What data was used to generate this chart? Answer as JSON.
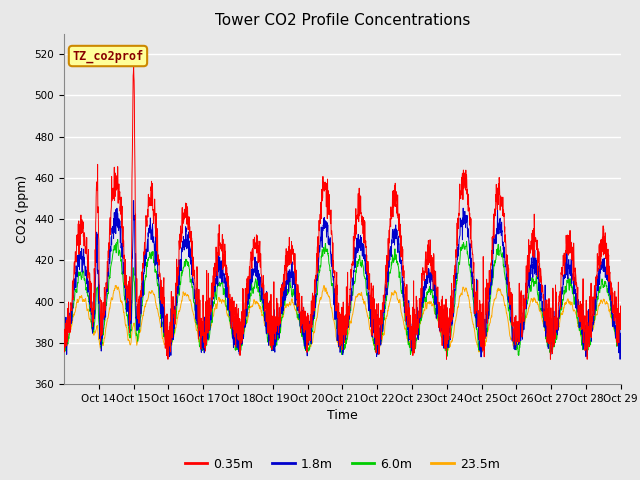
{
  "title": "Tower CO2 Profile Concentrations",
  "xlabel": "Time",
  "ylabel": "CO2 (ppm)",
  "ylim": [
    360,
    530
  ],
  "yticks": [
    360,
    380,
    400,
    420,
    440,
    460,
    480,
    500,
    520
  ],
  "series_labels": [
    "0.35m",
    "1.8m",
    "6.0m",
    "23.5m"
  ],
  "series_colors": [
    "#ff0000",
    "#0000cc",
    "#00cc00",
    "#ffaa00"
  ],
  "legend_label": "TZ_co2prof",
  "legend_box_color": "#ffff99",
  "legend_box_edge": "#cc8800",
  "background_color": "#e8e8e8",
  "grid_color": "#ffffff",
  "n_days": 16,
  "xtick_labels": [
    "Oct 14",
    "Oct 15",
    "Oct 16",
    "Oct 17",
    "Oct 18",
    "Oct 19",
    "Oct 20",
    "Oct 21",
    "Oct 22",
    "Oct 23",
    "Oct 24",
    "Oct 25",
    "Oct 26",
    "Oct 27",
    "Oct 28",
    "Oct 29"
  ],
  "seed": 42
}
